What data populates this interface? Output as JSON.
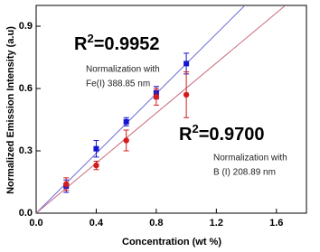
{
  "chart_data": {
    "type": "scatter",
    "x_label": "Concentration (wt %)",
    "y_label": "Normalized Emission Intensity (a.u)",
    "x": [
      0.2,
      0.4,
      0.6,
      0.8,
      1.0
    ],
    "series": [
      {
        "color": "#1414d2",
        "marker": "square",
        "values": [
          0.13,
          0.31,
          0.44,
          0.58,
          0.72
        ],
        "errors": [
          0.03,
          0.04,
          0.02,
          0.03,
          0.05
        ],
        "fit": {
          "x": [
            0,
            1.39
          ],
          "y": [
            0,
            1.0
          ],
          "color": "#6a6ad8"
        }
      },
      {
        "color": "#d41c1c",
        "marker": "circle",
        "values": [
          0.14,
          0.23,
          0.35,
          0.56,
          0.57
        ],
        "errors": [
          0.03,
          0.02,
          0.05,
          0.04,
          0.11
        ],
        "fit": {
          "x": [
            0,
            1.66
          ],
          "y": [
            0,
            1.0
          ],
          "color": "#c86a7a"
        }
      }
    ],
    "xlim": [
      0,
      1.8
    ],
    "ylim": [
      0,
      1.0
    ],
    "xticks": [
      {
        "value": 0,
        "label": "0.0"
      },
      {
        "value": 0.4,
        "label": "0.4"
      },
      {
        "value": 0.8,
        "label": "0.8"
      },
      {
        "value": 1.2,
        "label": "1.2"
      },
      {
        "value": 1.6,
        "label": "1.6"
      }
    ],
    "yticks": [
      {
        "value": 0,
        "label": "0.0"
      },
      {
        "value": 0.3,
        "label": "0.3"
      },
      {
        "value": 0.6,
        "label": "0.6"
      },
      {
        "value": 0.9,
        "label": "0.9"
      }
    ],
    "annotations": [
      {
        "parts": [
          "R",
          "2",
          "=0.9952"
        ],
        "color": "#1414d2",
        "notes": [
          "Normalization with",
          "Fe(I) 388.85 nm"
        ]
      },
      {
        "parts": [
          "R",
          "2",
          "=0.9700"
        ],
        "color": "#e01414",
        "notes": [
          "Normalization with",
          "B (I) 208.89 nm"
        ]
      }
    ]
  }
}
